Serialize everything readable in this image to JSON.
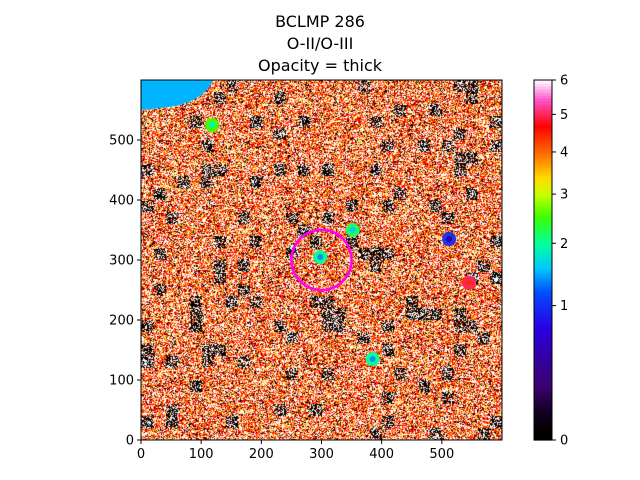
{
  "chart_data": {
    "type": "heatmap",
    "title_lines": [
      "BCLMP 286",
      "O-II/O-III",
      "Opacity = thick"
    ],
    "xlabel": "",
    "ylabel": "",
    "xlim": [
      0,
      600
    ],
    "ylim": [
      0,
      600
    ],
    "xticks": [
      0,
      100,
      200,
      300,
      400,
      500
    ],
    "yticks": [
      0,
      100,
      200,
      300,
      400,
      500
    ],
    "colorbar": {
      "colormap": "gist_ncar-like",
      "range": [
        0,
        6
      ],
      "ticks": [
        0,
        1,
        2,
        3,
        4,
        5,
        6
      ],
      "tick_labels": [
        "0",
        "1",
        "2",
        "3",
        "4",
        "5",
        "6"
      ]
    },
    "aperture_circle": {
      "center": [
        300,
        300
      ],
      "radius": 50,
      "color": "#ff00ff"
    },
    "sources": [
      {
        "x": 298,
        "y": 305,
        "value": 2.0
      },
      {
        "x": 385,
        "y": 135,
        "value": 2.0
      },
      {
        "x": 512,
        "y": 335,
        "value": 1.0
      },
      {
        "x": 545,
        "y": 262,
        "value": 5.0
      },
      {
        "x": 118,
        "y": 525,
        "value": 2.5
      },
      {
        "x": 352,
        "y": 350,
        "value": 2.2
      }
    ],
    "corner_region": {
      "x": [
        0,
        120
      ],
      "y": [
        560,
        600
      ],
      "value": 1.5
    },
    "grid": false,
    "legend": "none"
  }
}
